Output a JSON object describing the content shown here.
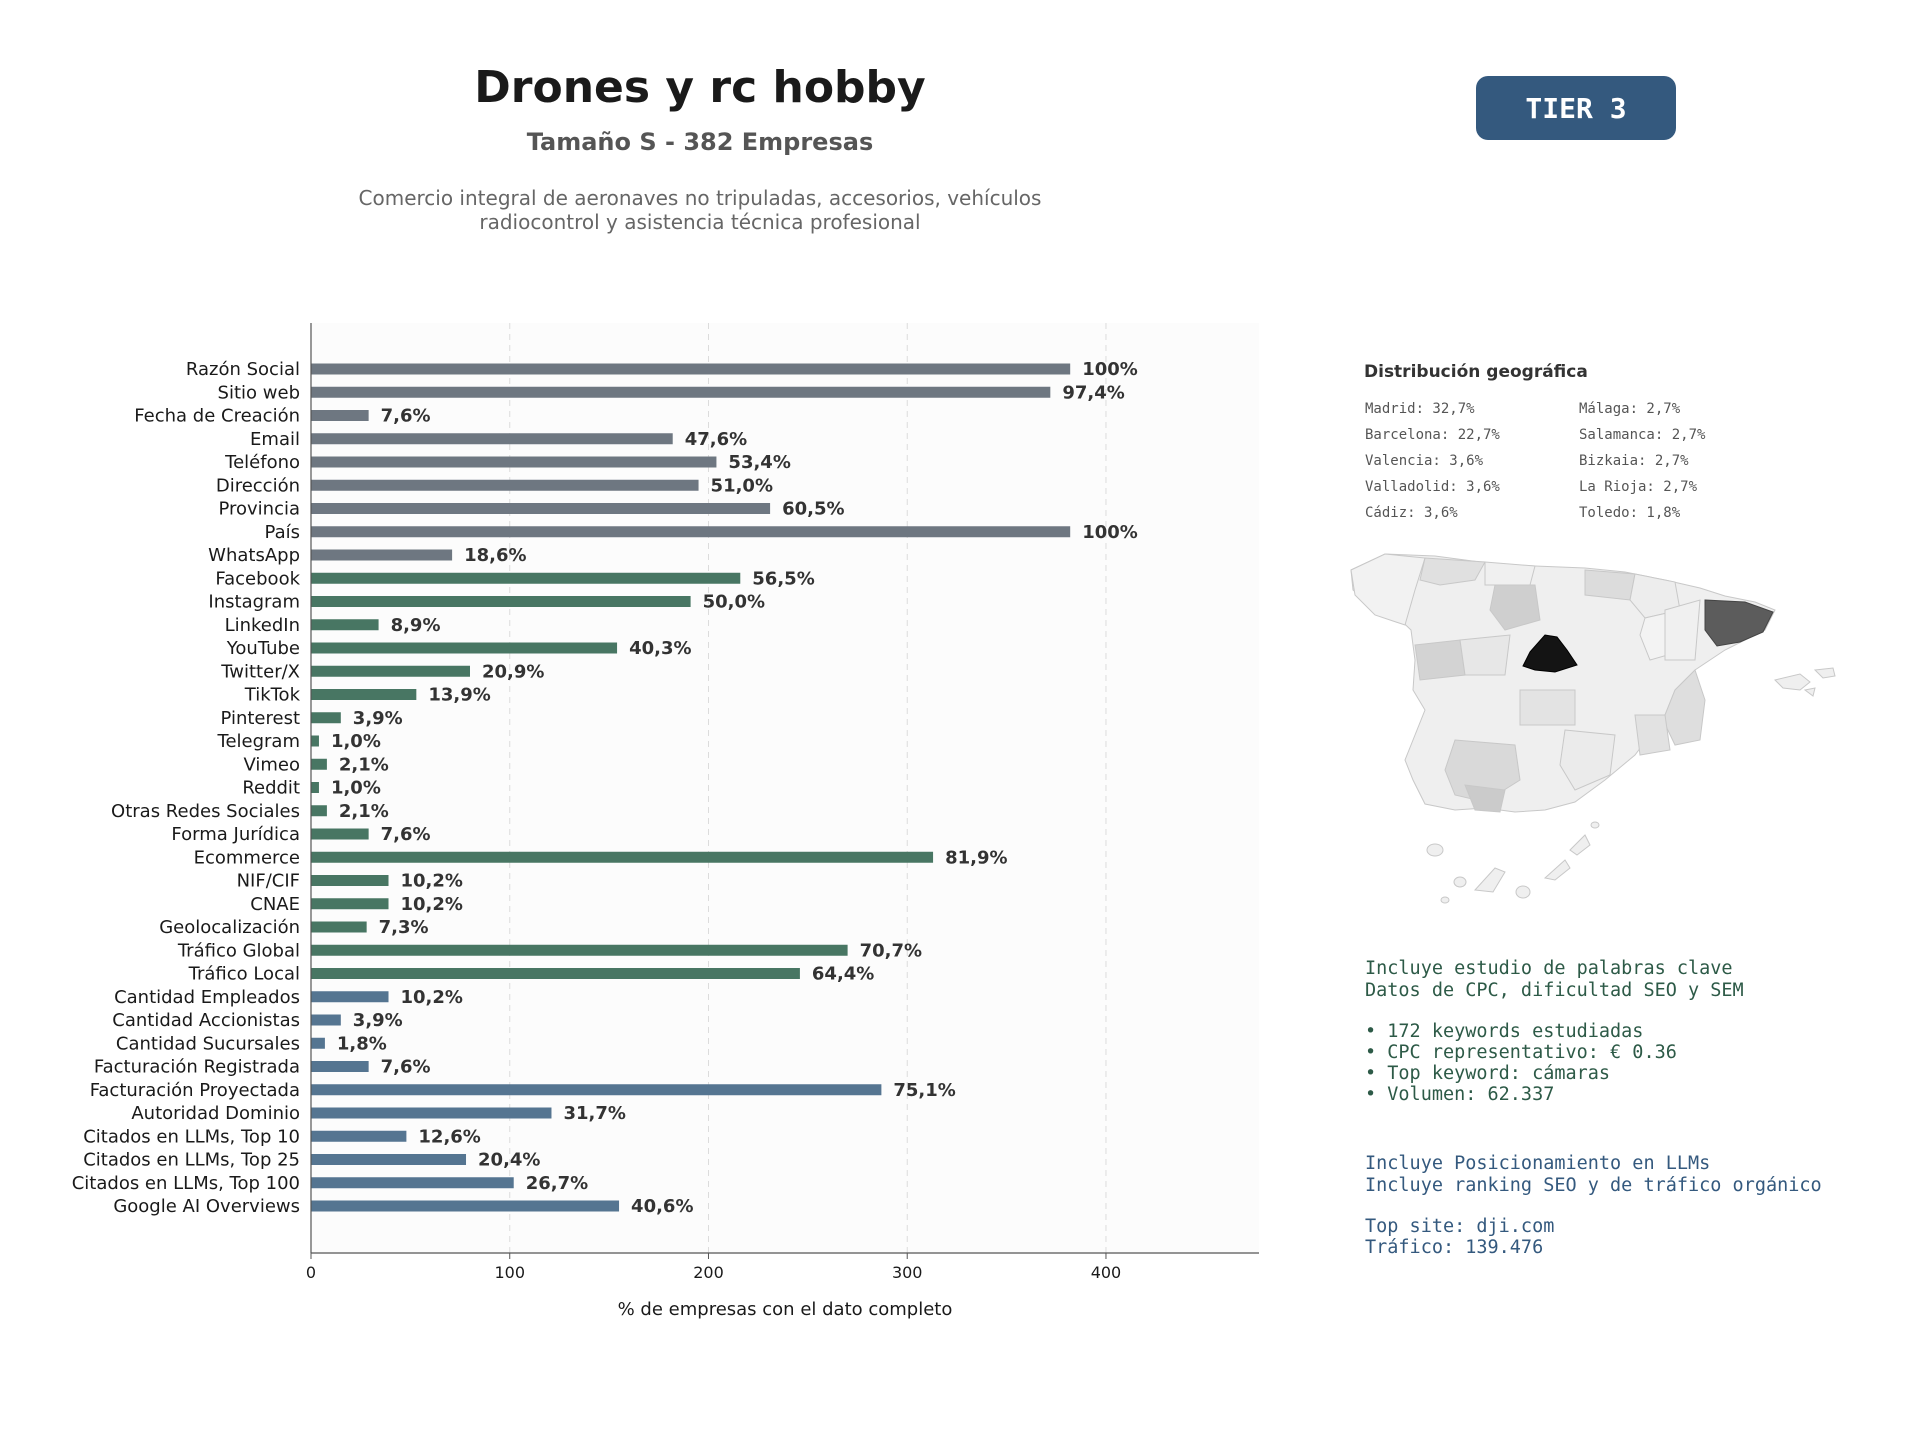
{
  "header": {
    "title": "Drones y rc hobby",
    "subtitle": "Tamaño S - 382 Empresas",
    "description_line1": "Comercio integral de aeronaves no tripuladas, accesorios, vehículos",
    "description_line2": "radiocontrol y asistencia técnica profesional",
    "tier": "TIER 3"
  },
  "colors": {
    "gray": "#6e7781",
    "green": "#487663",
    "blue": "#557591",
    "tier_bg": "#34597e",
    "keyword_text": "#2d5a47",
    "llm_text": "#34597e"
  },
  "chart_data": {
    "type": "bar",
    "orientation": "horizontal",
    "xlabel": "% de empresas con el dato completo",
    "xlim": [
      0,
      477
    ],
    "xticks": [
      0,
      100,
      200,
      300,
      400
    ],
    "grid": "vertical dashed",
    "categories": [
      "Razón Social",
      "Sitio web",
      "Fecha de Creación",
      "Email",
      "Teléfono",
      "Dirección",
      "Provincia",
      "País",
      "WhatsApp",
      "Facebook",
      "Instagram",
      "LinkedIn",
      "YouTube",
      "Twitter/X",
      "TikTok",
      "Pinterest",
      "Telegram",
      "Vimeo",
      "Reddit",
      "Otras Redes Sociales",
      "Forma Jurídica",
      "Ecommerce",
      "NIF/CIF",
      "CNAE",
      "Geolocalización",
      "Tráfico Global",
      "Tráfico Local",
      "Cantidad Empleados",
      "Cantidad Accionistas",
      "Cantidad Sucursales",
      "Facturación Registrada",
      "Facturación Proyectada",
      "Autoridad Dominio",
      "Citados en LLMs, Top 10",
      "Citados en LLMs, Top 25",
      "Citados en LLMs, Top 100",
      "Google AI Overviews"
    ],
    "values": [
      382,
      372,
      29,
      182,
      204,
      195,
      231,
      382,
      71,
      216,
      191,
      34,
      154,
      80,
      53,
      15,
      4,
      8,
      4,
      8,
      29,
      313,
      39,
      39,
      28,
      270,
      246,
      39,
      15,
      7,
      29,
      287,
      121,
      48,
      78,
      102,
      155
    ],
    "labels": [
      "100%",
      "97,4%",
      "7,6%",
      "47,6%",
      "53,4%",
      "51,0%",
      "60,5%",
      "100%",
      "18,6%",
      "56,5%",
      "50,0%",
      "8,9%",
      "40,3%",
      "20,9%",
      "13,9%",
      "3,9%",
      "1,0%",
      "2,1%",
      "1,0%",
      "2,1%",
      "7,6%",
      "81,9%",
      "10,2%",
      "10,2%",
      "7,3%",
      "70,7%",
      "64,4%",
      "10,2%",
      "3,9%",
      "1,8%",
      "7,6%",
      "75,1%",
      "31,7%",
      "12,6%",
      "20,4%",
      "26,7%",
      "40,6%"
    ],
    "bar_groups": [
      "gray",
      "gray",
      "gray",
      "gray",
      "gray",
      "gray",
      "gray",
      "gray",
      "gray",
      "green",
      "green",
      "green",
      "green",
      "green",
      "green",
      "green",
      "green",
      "green",
      "green",
      "green",
      "green",
      "green",
      "green",
      "green",
      "green",
      "green",
      "green",
      "blue",
      "blue",
      "blue",
      "blue",
      "blue",
      "blue",
      "blue",
      "blue",
      "blue",
      "blue"
    ]
  },
  "geo": {
    "title": "Distribución geográfica",
    "left": [
      "Madrid: 32,7%",
      "Barcelona: 22,7%",
      "Valencia: 3,6%",
      "Valladolid: 3,6%",
      "Cádiz: 3,6%"
    ],
    "right": [
      "Málaga: 2,7%",
      "Salamanca: 2,7%",
      "Bizkaia: 2,7%",
      "La Rioja: 2,7%",
      "Toledo: 1,8%"
    ]
  },
  "keywords": {
    "line1": "Incluye estudio de palabras clave",
    "line2": "Datos de CPC, dificultad SEO y SEM",
    "b1": "• 172 keywords estudiadas",
    "b2": "• CPC representativo: € 0.36",
    "b3": "• Top keyword: cámaras",
    "b4": "• Volumen: 62.337"
  },
  "llm": {
    "line1": "Incluye Posicionamiento en LLMs",
    "line2": "Incluye ranking SEO y de tráfico orgánico",
    "top_site": "Top site: dji.com",
    "traffic": "Tráfico: 139.476"
  }
}
